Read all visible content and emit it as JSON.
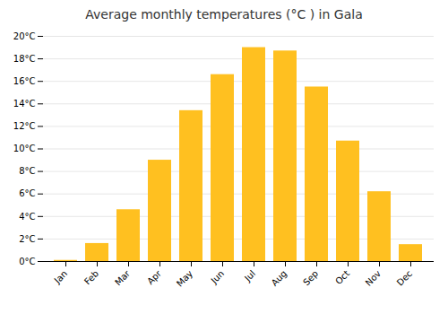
{
  "chart_data": {
    "type": "bar",
    "title": "Average monthly temperatures (°C ) in Gala",
    "categories": [
      "Jan",
      "Feb",
      "Mar",
      "Apr",
      "May",
      "Jun",
      "Jul",
      "Aug",
      "Sep",
      "Oct",
      "Nov",
      "Dec"
    ],
    "values": [
      0.1,
      1.6,
      4.6,
      9.0,
      13.4,
      16.6,
      19.0,
      18.7,
      15.5,
      10.7,
      6.2,
      1.5
    ],
    "color": "#FFC020",
    "ylim": [
      0,
      20
    ],
    "yticks": [
      {
        "value": 0,
        "label": "0°C"
      },
      {
        "value": 2,
        "label": "2°C"
      },
      {
        "value": 4,
        "label": "4°C"
      },
      {
        "value": 6,
        "label": "6°C"
      },
      {
        "value": 8,
        "label": "8°C"
      },
      {
        "value": 10,
        "label": "10°C"
      },
      {
        "value": 12,
        "label": "12°C"
      },
      {
        "value": 14,
        "label": "14°C"
      },
      {
        "value": 16,
        "label": "16°C"
      },
      {
        "value": 18,
        "label": "18°C"
      },
      {
        "value": 20,
        "label": "20°C"
      }
    ],
    "grid": true
  }
}
